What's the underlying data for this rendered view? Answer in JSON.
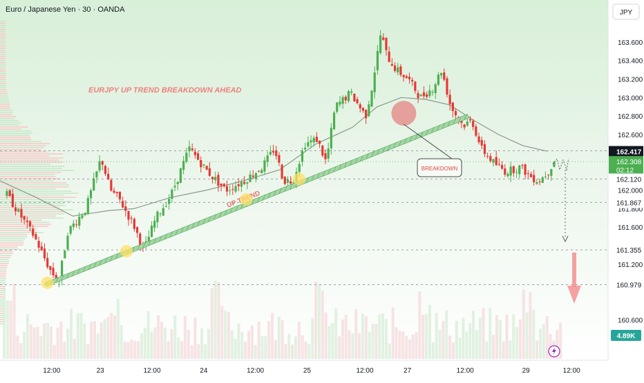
{
  "header": {
    "symbol_title": "Euro / Japanese Yen · 30 · OANDA",
    "currency_button": "JPY"
  },
  "annotations": {
    "headline": "EURJPY UP TREND BREAKDOWN AHEAD",
    "trendline_label": "UP TREND",
    "breakdown_label": "BREAKDOWN"
  },
  "colors": {
    "up": "#4caf50",
    "down": "#e53935",
    "trendline": "#7cc47f",
    "headline": "#f08080",
    "touch_point": "#ffe066",
    "breakdown_marker": "#e57373",
    "arrow": "#f28b8b",
    "ma": "#8a9a8a",
    "background_top": "#d8efd8",
    "current_price_bg": "#131722",
    "timer_bg": "#4caf50",
    "volume_badge_bg": "#26a69a"
  },
  "chart_data": {
    "type": "candlestick",
    "symbol": "EURJPY",
    "interval": "30",
    "y_axis": {
      "range": [
        160.55,
        163.8
      ],
      "tick_labels": [
        "163.600",
        "163.400",
        "163.200",
        "163.000",
        "162.800",
        "162.600",
        "162.000",
        "161.800",
        "161.600",
        "161.200",
        "160.600"
      ],
      "price_labels": [
        {
          "label": "162.425",
          "value": 162.425,
          "style": "plain"
        },
        {
          "label": "162.417",
          "value": 162.417,
          "style": "current"
        },
        {
          "label": "162.308",
          "value": 162.308,
          "style": "green"
        },
        {
          "label": "02:12",
          "value": 162.22,
          "style": "green"
        },
        {
          "label": "162.120",
          "value": 162.12,
          "style": "plain"
        },
        {
          "label": "161.867",
          "value": 161.867,
          "style": "plain"
        },
        {
          "label": "161.355",
          "value": 161.355,
          "style": "plain"
        },
        {
          "label": "160.979",
          "value": 160.979,
          "style": "plain"
        }
      ],
      "volume_badge": "4.89K"
    },
    "x_axis": {
      "ticks": [
        {
          "label": "12:00",
          "t": 0.085
        },
        {
          "label": "23",
          "t": 0.165
        },
        {
          "label": "12:00",
          "t": 0.25
        },
        {
          "label": "24",
          "t": 0.335
        },
        {
          "label": "12:00",
          "t": 0.42
        },
        {
          "label": "25",
          "t": 0.505
        },
        {
          "label": "12:00",
          "t": 0.6
        },
        {
          "label": "27",
          "t": 0.67
        },
        {
          "label": "12:00",
          "t": 0.765
        },
        {
          "label": "29",
          "t": 0.865
        },
        {
          "label": "12:00",
          "t": 0.94
        }
      ]
    },
    "price_path": [
      [
        0.0,
        161.95
      ],
      [
        0.02,
        161.75
      ],
      [
        0.045,
        161.5
      ],
      [
        0.07,
        161.15
      ],
      [
        0.085,
        161.0
      ],
      [
        0.1,
        161.55
      ],
      [
        0.13,
        161.8
      ],
      [
        0.155,
        162.35
      ],
      [
        0.17,
        162.0
      ],
      [
        0.185,
        161.9
      ],
      [
        0.21,
        161.6
      ],
      [
        0.225,
        161.35
      ],
      [
        0.245,
        161.7
      ],
      [
        0.27,
        161.95
      ],
      [
        0.3,
        162.45
      ],
      [
        0.33,
        162.2
      ],
      [
        0.36,
        162.0
      ],
      [
        0.39,
        162.1
      ],
      [
        0.42,
        162.25
      ],
      [
        0.44,
        162.45
      ],
      [
        0.455,
        162.1
      ],
      [
        0.47,
        162.1
      ],
      [
        0.49,
        162.5
      ],
      [
        0.51,
        162.55
      ],
      [
        0.525,
        162.3
      ],
      [
        0.54,
        162.9
      ],
      [
        0.565,
        163.05
      ],
      [
        0.59,
        162.8
      ],
      [
        0.6,
        163.1
      ],
      [
        0.615,
        163.7
      ],
      [
        0.625,
        163.45
      ],
      [
        0.64,
        163.3
      ],
      [
        0.66,
        163.2
      ],
      [
        0.68,
        163.0
      ],
      [
        0.7,
        163.1
      ],
      [
        0.715,
        163.3
      ],
      [
        0.73,
        162.9
      ],
      [
        0.75,
        162.7
      ],
      [
        0.765,
        162.75
      ],
      [
        0.78,
        162.45
      ],
      [
        0.8,
        162.3
      ],
      [
        0.82,
        162.2
      ],
      [
        0.845,
        162.25
      ],
      [
        0.86,
        162.15
      ],
      [
        0.875,
        162.1
      ],
      [
        0.89,
        162.2
      ],
      [
        0.9,
        162.32
      ]
    ],
    "moving_average": [
      [
        0.0,
        162.1
      ],
      [
        0.06,
        161.92
      ],
      [
        0.12,
        161.72
      ],
      [
        0.18,
        161.78
      ],
      [
        0.22,
        161.8
      ],
      [
        0.28,
        161.92
      ],
      [
        0.34,
        162.0
      ],
      [
        0.4,
        162.1
      ],
      [
        0.46,
        162.22
      ],
      [
        0.52,
        162.5
      ],
      [
        0.58,
        162.68
      ],
      [
        0.62,
        162.9
      ],
      [
        0.66,
        163.0
      ],
      [
        0.7,
        162.98
      ],
      [
        0.74,
        162.92
      ],
      [
        0.78,
        162.75
      ],
      [
        0.82,
        162.6
      ],
      [
        0.86,
        162.48
      ],
      [
        0.9,
        162.42
      ]
    ],
    "trendline": {
      "start": [
        0.075,
        160.98
      ],
      "end": [
        0.77,
        162.8
      ]
    },
    "touch_points": [
      [
        0.078,
        161.0
      ],
      [
        0.208,
        161.34
      ],
      [
        0.405,
        161.9
      ],
      [
        0.492,
        162.12
      ]
    ],
    "breakdown_point": [
      0.755,
      162.83
    ],
    "projection": {
      "from": [
        0.905,
        162.4
      ],
      "to": [
        0.915,
        161.65
      ]
    },
    "horizontal_levels": [
      162.425,
      162.12,
      161.867,
      161.355,
      160.979
    ]
  }
}
